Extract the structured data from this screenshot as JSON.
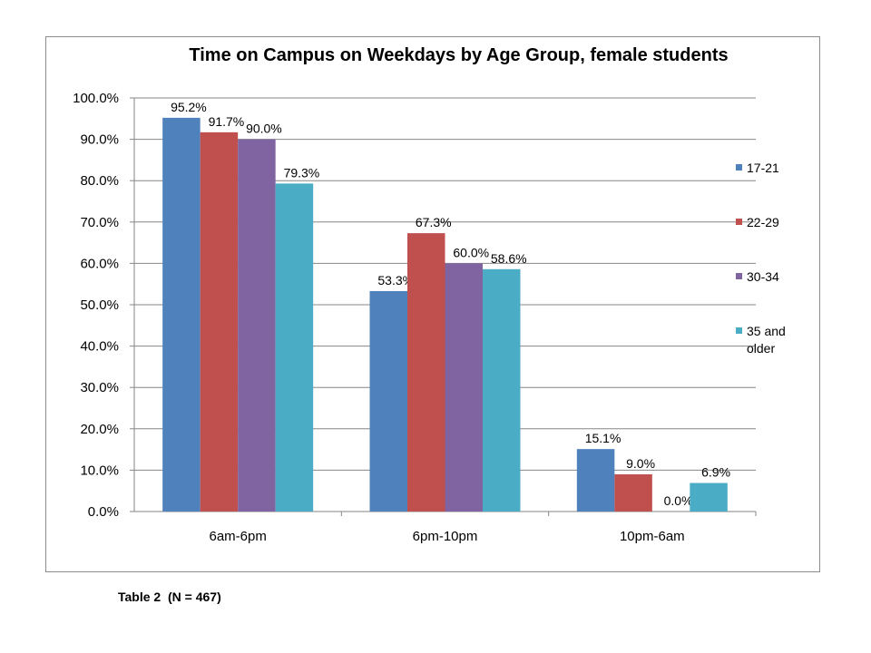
{
  "chart_data": {
    "type": "bar",
    "title": "Time on Campus on Weekdays by Age Group, female students",
    "xlabel": "",
    "ylabel": "",
    "categories": [
      "6am-6pm",
      "6pm-10pm",
      "10pm-6am"
    ],
    "series": [
      {
        "name": "17-21",
        "color": "#4f81bd",
        "values": [
          95.2,
          53.3,
          15.1
        ],
        "labels": [
          "95.2%",
          "53.3%",
          "15.1%"
        ]
      },
      {
        "name": "22-29",
        "color": "#c0504d",
        "values": [
          91.7,
          67.3,
          9.0
        ],
        "labels": [
          "91.7%",
          "67.3%",
          "9.0%"
        ]
      },
      {
        "name": "30-34",
        "color": "#8064a2",
        "values": [
          90.0,
          60.0,
          0.0
        ],
        "labels": [
          "90.0%",
          "60.0%",
          "0.0%"
        ]
      },
      {
        "name": "35 and older",
        "color": "#4bacc6",
        "values": [
          79.3,
          58.6,
          6.9
        ],
        "labels": [
          "79.3%",
          "58.6%",
          "6.9%"
        ]
      }
    ],
    "ylim": [
      0,
      100
    ],
    "yticks": [
      "0.0%",
      "10.0%",
      "20.0%",
      "30.0%",
      "40.0%",
      "50.0%",
      "60.0%",
      "70.0%",
      "80.0%",
      "90.0%",
      "100.0%"
    ],
    "grid": true,
    "legend_position": "right"
  },
  "footnote": "Table 2  (N = 467)"
}
